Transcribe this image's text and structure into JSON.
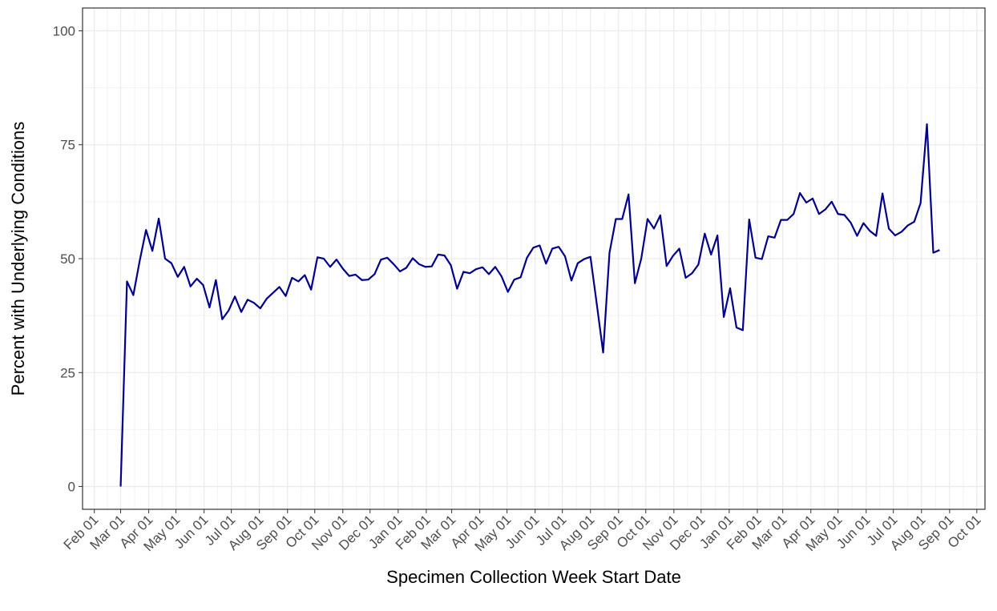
{
  "chart_data": {
    "type": "line",
    "xlabel": "Specimen Collection Week Start Date",
    "ylabel": "Percent with Underlying Conditions",
    "color": "#00008b",
    "grid": true,
    "x": [
      29,
      36,
      43,
      50,
      57,
      64,
      71,
      78,
      85,
      92,
      99,
      106,
      113,
      120,
      127,
      134,
      141,
      148,
      155,
      162,
      169,
      176,
      183,
      190,
      197,
      204,
      211,
      218,
      225,
      232,
      239,
      246,
      253,
      260,
      267,
      274,
      281,
      288,
      295,
      302,
      309,
      316,
      323,
      330,
      337,
      344,
      351,
      358,
      365,
      372,
      379,
      386,
      393,
      400,
      407,
      414,
      421,
      428,
      435,
      442,
      449,
      456,
      463,
      470,
      477,
      484,
      491,
      498,
      505,
      512,
      519,
      526,
      533,
      540,
      547,
      554,
      561,
      568,
      575,
      582,
      589,
      596,
      603,
      610,
      617,
      624,
      631,
      638,
      645,
      652,
      659,
      666,
      673,
      680,
      687,
      694,
      701,
      708,
      715,
      722,
      729,
      736,
      743,
      750,
      757,
      764,
      771,
      778,
      785,
      792,
      799,
      806,
      813,
      820,
      827,
      834,
      841,
      848,
      855,
      862,
      869,
      876,
      883,
      890,
      897,
      904,
      911,
      918,
      925,
      932
    ],
    "values": [
      0,
      45,
      42,
      49.5,
      56.3,
      51.7,
      58.8,
      50,
      49,
      46,
      48.2,
      43.9,
      45.6,
      44.2,
      39.3,
      45.3,
      36.7,
      38.6,
      41.7,
      38.3,
      41,
      40.3,
      39.1,
      41.2,
      42.5,
      43.8,
      41.8,
      45.8,
      45,
      46.4,
      43.2,
      50.3,
      50,
      48.2,
      49.8,
      47.8,
      46.2,
      46.5,
      45.3,
      45.4,
      46.6,
      49.8,
      50.2,
      48.8,
      47.2,
      48,
      50.1,
      48.8,
      48.2,
      48.3,
      50.9,
      50.7,
      48.6,
      43.4,
      47.1,
      46.8,
      47.7,
      48.1,
      46.6,
      48.2,
      46.1,
      42.7,
      45.4,
      45.9,
      50.2,
      52.4,
      52.9,
      48.9,
      52.2,
      52.6,
      50.5,
      45.2,
      49,
      49.9,
      50.4,
      40,
      29.4,
      51.3,
      58.7,
      58.7,
      64.1,
      44.6,
      50,
      58.7,
      56.6,
      59.5,
      48.4,
      50.6,
      52.2,
      45.8,
      46.8,
      48.7,
      55.5,
      50.9,
      55.1,
      37.2,
      43.5,
      34.9,
      34.3,
      58.6,
      50.2,
      49.9,
      54.9,
      54.6,
      58.5,
      58.5,
      59.8,
      64.4,
      62.3,
      63.2,
      59.8,
      60.8,
      62.5,
      59.8,
      59.6,
      57.9,
      55,
      57.8,
      56.1,
      55,
      64.3,
      56.6,
      55.1,
      55.9,
      57.3,
      58.1,
      62.2,
      79.5,
      51.3,
      51.9
    ],
    "xlim": [
      -13,
      982
    ],
    "xticks": [
      {
        "value": 0,
        "label": "Feb 01"
      },
      {
        "value": 29,
        "label": "Mar 01"
      },
      {
        "value": 60,
        "label": "Apr 01"
      },
      {
        "value": 90,
        "label": "May 01"
      },
      {
        "value": 121,
        "label": "Jun 01"
      },
      {
        "value": 151,
        "label": "Jul 01"
      },
      {
        "value": 182,
        "label": "Aug 01"
      },
      {
        "value": 213,
        "label": "Sep 01"
      },
      {
        "value": 243,
        "label": "Oct 01"
      },
      {
        "value": 274,
        "label": "Nov 01"
      },
      {
        "value": 304,
        "label": "Dec 01"
      },
      {
        "value": 335,
        "label": "Jan 01"
      },
      {
        "value": 366,
        "label": "Feb 01"
      },
      {
        "value": 394,
        "label": "Mar 01"
      },
      {
        "value": 425,
        "label": "Apr 01"
      },
      {
        "value": 455,
        "label": "May 01"
      },
      {
        "value": 486,
        "label": "Jun 01"
      },
      {
        "value": 516,
        "label": "Jul 01"
      },
      {
        "value": 547,
        "label": "Aug 01"
      },
      {
        "value": 578,
        "label": "Sep 01"
      },
      {
        "value": 608,
        "label": "Oct 01"
      },
      {
        "value": 639,
        "label": "Nov 01"
      },
      {
        "value": 669,
        "label": "Dec 01"
      },
      {
        "value": 700,
        "label": "Jan 01"
      },
      {
        "value": 731,
        "label": "Feb 01"
      },
      {
        "value": 759,
        "label": "Mar 01"
      },
      {
        "value": 790,
        "label": "Apr 01"
      },
      {
        "value": 820,
        "label": "May 01"
      },
      {
        "value": 851,
        "label": "Jun 01"
      },
      {
        "value": 881,
        "label": "Jul 01"
      },
      {
        "value": 912,
        "label": "Aug 01"
      },
      {
        "value": 943,
        "label": "Sep 01"
      },
      {
        "value": 973,
        "label": "Oct 01"
      }
    ],
    "ylim": [
      -5,
      105
    ],
    "yticks": [
      0,
      25,
      50,
      75,
      100
    ]
  }
}
